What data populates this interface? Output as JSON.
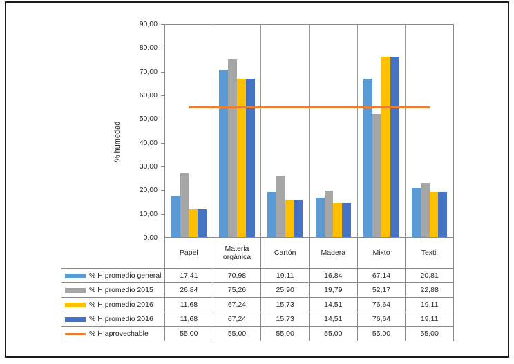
{
  "chart_data": {
    "type": "bar",
    "title": "",
    "categories": [
      "Papel",
      "Materia orgánica",
      "Cartón",
      "Madera",
      "Mixto",
      "Textil"
    ],
    "series": [
      {
        "name": "% H promedio general",
        "type": "bar",
        "color": "#5B9BD5",
        "values": [
          17.41,
          70.98,
          19.11,
          16.84,
          67.14,
          20.81
        ]
      },
      {
        "name": "% H promedio 2015",
        "type": "bar",
        "color": "#A6A6A6",
        "values": [
          26.84,
          75.26,
          25.9,
          19.79,
          52.17,
          22.88
        ]
      },
      {
        "name": "% H promedio 2016",
        "type": "bar",
        "color": "#FFC000",
        "values": [
          11.68,
          67.24,
          15.73,
          14.51,
          76.64,
          19.11
        ]
      },
      {
        "name": "% H promedio 2016",
        "type": "bar",
        "color": "#4472C4",
        "values": [
          11.68,
          67.24,
          15.73,
          14.51,
          76.64,
          19.11
        ]
      },
      {
        "name": "% H aprovechable",
        "type": "line",
        "color": "#ED7D31",
        "values": [
          55.0,
          55.0,
          55.0,
          55.0,
          55.0,
          55.0
        ]
      }
    ],
    "xlabel": "",
    "ylabel": "% humedad",
    "ylim": [
      0,
      90
    ],
    "ytick_step": 10,
    "ytick_labels": [
      "0,00",
      "10,00",
      "20,00",
      "30,00",
      "40,00",
      "50,00",
      "60,00",
      "70,00",
      "80,00",
      "90,00"
    ],
    "grid": "vertical category separators only",
    "legend_position": "left column of data table",
    "data_table_shown": true,
    "decimal_separator": ","
  }
}
